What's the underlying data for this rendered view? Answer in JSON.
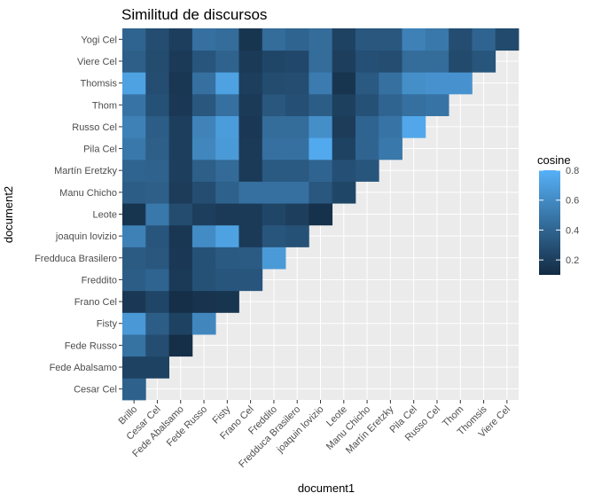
{
  "chart_data": {
    "type": "heatmap",
    "title": "Similitud de discursos",
    "xlabel": "document1",
    "ylabel": "document2",
    "x_categories": [
      "Brillo",
      "Cesar Cel",
      "Fede Abalsamo",
      "Fede Russo",
      "Fisty",
      "Frano Cel",
      "Freddito",
      "Fredduca Brasilero",
      "joaquin lovizio",
      "Leote",
      "Manu Chicho",
      "Martín Eretzky",
      "Pila Cel",
      "Russo Cel",
      "Thom",
      "Thomsis",
      "Viere Cel"
    ],
    "y_categories": [
      "Cesar Cel",
      "Fede Abalsamo",
      "Fede Russo",
      "Fisty",
      "Frano Cel",
      "Freddito",
      "Fredduca Brasilero",
      "joaquin lovizio",
      "Leote",
      "Manu Chicho",
      "Martín Eretzky",
      "Pila Cel",
      "Russo Cel",
      "Thom",
      "Thomsis",
      "Viere Cel",
      "Yogi Cel"
    ],
    "values": [
      [
        0.38,
        null,
        null,
        null,
        null,
        null,
        null,
        null,
        null,
        null,
        null,
        null,
        null,
        null,
        null,
        null,
        null
      ],
      [
        0.22,
        0.22,
        null,
        null,
        null,
        null,
        null,
        null,
        null,
        null,
        null,
        null,
        null,
        null,
        null,
        null,
        null
      ],
      [
        0.47,
        0.28,
        0.12,
        null,
        null,
        null,
        null,
        null,
        null,
        null,
        null,
        null,
        null,
        null,
        null,
        null,
        null
      ],
      [
        0.67,
        0.36,
        0.22,
        0.58,
        null,
        null,
        null,
        null,
        null,
        null,
        null,
        null,
        null,
        null,
        null,
        null,
        null
      ],
      [
        0.17,
        0.24,
        0.12,
        0.14,
        0.15,
        null,
        null,
        null,
        null,
        null,
        null,
        null,
        null,
        null,
        null,
        null,
        null
      ],
      [
        0.36,
        0.4,
        0.18,
        0.3,
        0.32,
        0.32,
        null,
        null,
        null,
        null,
        null,
        null,
        null,
        null,
        null,
        null,
        null
      ],
      [
        0.35,
        0.33,
        0.17,
        0.3,
        0.34,
        0.35,
        0.68,
        null,
        null,
        null,
        null,
        null,
        null,
        null,
        null,
        null,
        null
      ],
      [
        0.55,
        0.32,
        0.16,
        0.6,
        0.72,
        0.18,
        0.32,
        0.3,
        null,
        null,
        null,
        null,
        null,
        null,
        null,
        null,
        null
      ],
      [
        0.15,
        0.5,
        0.27,
        0.2,
        0.18,
        0.18,
        0.24,
        0.2,
        0.13,
        null,
        null,
        null,
        null,
        null,
        null,
        null,
        null
      ],
      [
        0.36,
        0.37,
        0.19,
        0.28,
        0.38,
        0.46,
        0.46,
        0.46,
        0.33,
        0.24,
        null,
        null,
        null,
        null,
        null,
        null,
        null
      ],
      [
        0.4,
        0.39,
        0.2,
        0.37,
        0.43,
        0.18,
        0.34,
        0.34,
        0.4,
        0.29,
        0.32,
        null,
        null,
        null,
        null,
        null,
        null
      ],
      [
        0.5,
        0.37,
        0.2,
        0.58,
        0.68,
        0.18,
        0.46,
        0.46,
        0.76,
        0.22,
        0.4,
        0.5,
        null,
        null,
        null,
        null,
        null
      ],
      [
        0.55,
        0.36,
        0.2,
        0.56,
        0.69,
        0.17,
        0.44,
        0.44,
        0.62,
        0.19,
        0.4,
        0.48,
        0.75,
        null,
        null,
        null,
        null
      ],
      [
        0.48,
        0.3,
        0.17,
        0.33,
        0.46,
        0.18,
        0.33,
        0.29,
        0.36,
        0.21,
        0.3,
        0.4,
        0.46,
        0.48,
        null,
        null,
        null
      ],
      [
        0.72,
        0.28,
        0.16,
        0.46,
        0.72,
        0.2,
        0.27,
        0.28,
        0.52,
        0.15,
        0.34,
        0.46,
        0.62,
        0.64,
        0.64,
        null,
        null
      ],
      [
        0.37,
        0.27,
        0.18,
        0.32,
        0.39,
        0.18,
        0.24,
        0.25,
        0.44,
        0.2,
        0.29,
        0.28,
        0.44,
        0.44,
        0.26,
        0.32,
        null
      ],
      [
        0.4,
        0.28,
        0.2,
        0.46,
        0.44,
        0.15,
        0.44,
        0.4,
        0.44,
        0.22,
        0.33,
        0.33,
        0.55,
        0.5,
        0.28,
        0.4,
        0.26
      ]
    ],
    "legend": {
      "title": "cosine",
      "range": [
        0.1,
        0.8
      ],
      "breaks": [
        0.2,
        0.4,
        0.6,
        0.8
      ],
      "break_labels": [
        "0.2",
        "0.4",
        "0.6",
        "0.8"
      ],
      "placement": "right"
    },
    "colors": {
      "low": "#132B43",
      "high": "#56B1F7",
      "panel_background": "#EBEBEB",
      "grid": "#FFFFFF"
    },
    "grid": true
  }
}
